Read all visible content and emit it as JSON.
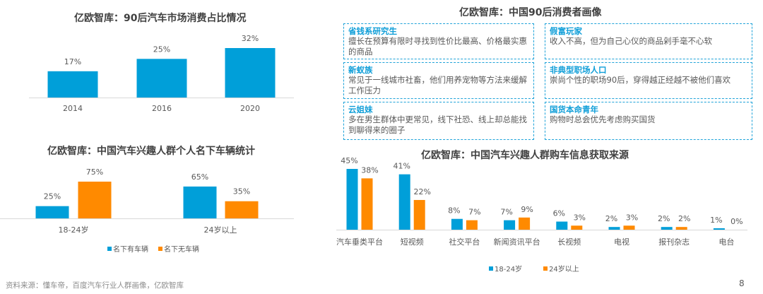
{
  "colors": {
    "blue": "#009fd9",
    "orange": "#ff8a00",
    "axis": "#d9d9d9",
    "box_border": "#1fa3d9",
    "box_title": "#0f9ed8"
  },
  "chart_data": [
    {
      "type": "bar",
      "title": "亿欧智库：90后汽车市场消费占比情况",
      "categories": [
        "2014",
        "2016",
        "2020"
      ],
      "values": [
        17,
        25,
        32
      ],
      "value_labels": [
        "17%",
        "25%",
        "32%"
      ],
      "xlabel": "",
      "ylabel": "",
      "ylim": [
        0,
        32
      ],
      "grid": false,
      "legend": "none"
    },
    {
      "type": "bar",
      "title": "亿欧智库：中国汽车兴趣人群个人名下车辆统计",
      "categories": [
        "18-24岁",
        "24岁以上"
      ],
      "series": [
        {
          "name": "名下有车辆",
          "values": [
            25,
            65
          ],
          "labels": [
            "25%",
            "65%"
          ]
        },
        {
          "name": "名下无车辆",
          "values": [
            75,
            35
          ],
          "labels": [
            "75%",
            "35%"
          ]
        }
      ],
      "xlabel": "",
      "ylabel": "",
      "ylim": [
        0,
        75
      ],
      "grid": false,
      "legend": "bottom"
    },
    {
      "type": "bar",
      "title": "亿欧智库：中国汽车兴趣人群购车信息获取来源",
      "categories": [
        "汽车垂类平台",
        "短视频",
        "社交平台",
        "新闻资讯平台",
        "长视频",
        "电视",
        "报刊杂志",
        "电台"
      ],
      "series": [
        {
          "name": "18-24岁",
          "values": [
            45,
            41,
            8,
            7,
            6,
            2,
            2,
            1
          ],
          "labels": [
            "45%",
            "41%",
            "8%",
            "7%",
            "6%",
            "2%",
            "2%",
            "1%"
          ]
        },
        {
          "name": "24岁以上",
          "values": [
            38,
            22,
            7,
            9,
            3,
            3,
            2,
            0
          ],
          "labels": [
            "38%",
            "22%",
            "7%",
            "9%",
            "3%",
            "3%",
            "2%",
            "0%"
          ]
        }
      ],
      "xlabel": "",
      "ylabel": "",
      "ylim": [
        0,
        45
      ],
      "grid": false,
      "legend": "bottom"
    }
  ],
  "portrait": {
    "title": "亿欧智库：中国90后消费者画像",
    "items": [
      {
        "name": "省钱系研究生",
        "desc": "擅长在预算有限时寻找到性价比最高、价格最实惠的商品"
      },
      {
        "name": "假富玩家",
        "desc": "收入不高，但为自己心仪的商品剁手毫不心软"
      },
      {
        "name": "新蚁族",
        "desc": "常见于一线城市社畜，他们用养宠物等方法来缓解工作压力"
      },
      {
        "name": "非典型职场人口",
        "desc": "崇尚个性的职场90后，穿得越正经越不被他们喜欢"
      },
      {
        "name": "云姐妹",
        "desc": "多在男生群体中更常见，线下社恐、线上却总能找到聊得来的圈子"
      },
      {
        "name": "国货本命青年",
        "desc": "购物时总会优先考虑购买国货"
      }
    ]
  },
  "footer": {
    "source": "资料来源：懂车帝，百度汽车行业人群画像，亿欧智库",
    "page": "8"
  }
}
